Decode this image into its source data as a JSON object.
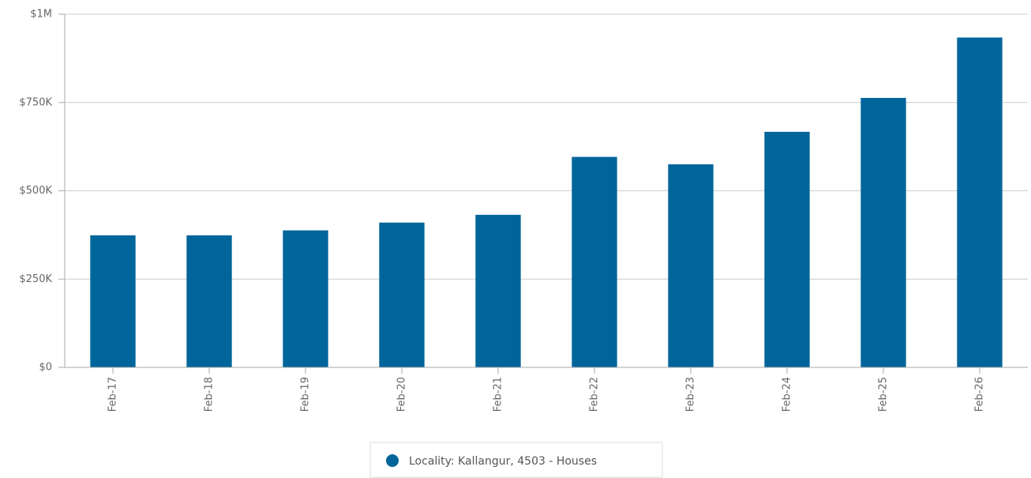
{
  "chart_data": {
    "type": "bar",
    "categories": [
      "Feb-17",
      "Feb-18",
      "Feb-19",
      "Feb-20",
      "Feb-21",
      "Feb-22",
      "Feb-23",
      "Feb-24",
      "Feb-25",
      "Feb-26"
    ],
    "series": [
      {
        "name": "Locality: Kallangur, 4503 - Houses",
        "color": "#00659a",
        "values": [
          374000,
          374000,
          388000,
          410000,
          432000,
          596000,
          575000,
          667000,
          763000,
          934000
        ]
      }
    ],
    "ylim": [
      0,
      1000000
    ],
    "yticks": [
      {
        "value": 0,
        "label": "$0"
      },
      {
        "value": 250000,
        "label": "$250K"
      },
      {
        "value": 500000,
        "label": "$500K"
      },
      {
        "value": 750000,
        "label": "$750K"
      },
      {
        "value": 1000000,
        "label": "$1M"
      }
    ],
    "grid": true
  }
}
